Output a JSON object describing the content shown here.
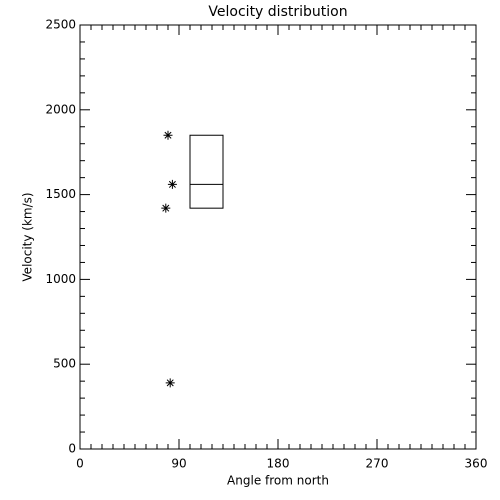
{
  "chart_data": {
    "type": "scatter",
    "title": "Velocity distribution",
    "xlabel": "Angle from north",
    "ylabel": "Velocity (km/s)",
    "x": [
      80,
      84,
      78,
      82
    ],
    "values": [
      1850,
      1560,
      1420,
      390
    ],
    "color": "#000000",
    "box": {
      "x0": 100,
      "x1": 130,
      "max": 1850,
      "median": 1560,
      "min": 1420
    },
    "xlim": [
      0,
      360
    ],
    "xticks": [
      0,
      90,
      180,
      270,
      360
    ],
    "ylim": [
      0,
      2500
    ],
    "yticks": [
      0,
      500,
      1000,
      1500,
      2000,
      2500
    ]
  }
}
